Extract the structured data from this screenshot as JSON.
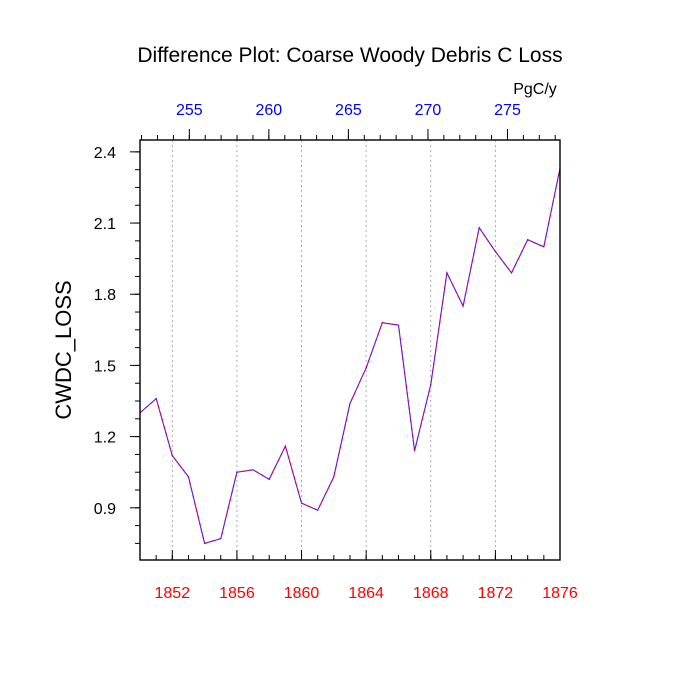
{
  "chart_data": {
    "type": "line",
    "title": "Difference Plot: Coarse Woody Debris C Loss",
    "ylabel": "CWDC_LOSS",
    "xlabel": "",
    "units_label": "PgC/y",
    "x": [
      1850,
      1851,
      1852,
      1853,
      1854,
      1855,
      1856,
      1857,
      1858,
      1859,
      1860,
      1861,
      1862,
      1863,
      1864,
      1865,
      1866,
      1867,
      1868,
      1869,
      1870,
      1871,
      1872,
      1873,
      1874,
      1875,
      1876
    ],
    "series": [
      {
        "values": [
          1.3,
          1.36,
          1.12,
          1.03,
          0.75,
          0.77,
          1.05,
          1.06,
          1.02,
          1.16,
          0.92,
          0.89,
          1.03,
          1.34,
          1.49,
          1.68,
          1.67,
          1.14,
          1.42,
          1.89,
          1.75,
          2.08,
          1.98,
          1.89,
          2.03,
          2.0,
          2.33
        ],
        "color": "#7b00b8"
      }
    ],
    "xlim": [
      1850,
      1876
    ],
    "ylim": [
      0.68,
      2.45
    ],
    "bottom_ticks": [
      "1852",
      "1856",
      "1860",
      "1864",
      "1868",
      "1872",
      "1876"
    ],
    "bottom_tick_color": "#ff0000",
    "top_ticks": [
      "255",
      "260",
      "265",
      "270",
      "275"
    ],
    "top_tick_color": "#0000ff",
    "top_axis_range": [
      251.9,
      278.3
    ],
    "y_ticks": [
      "0.9",
      "1.2",
      "1.5",
      "1.8",
      "2.1",
      "2.4"
    ],
    "grid": "vertical-dotted"
  }
}
